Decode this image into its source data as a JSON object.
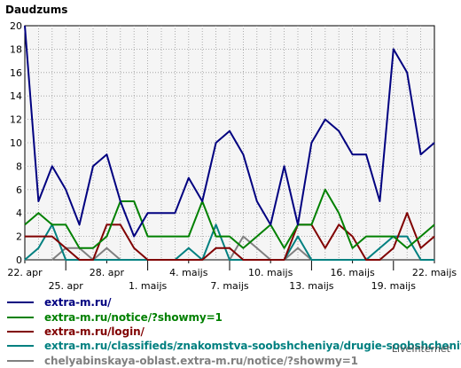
{
  "chart_data": {
    "type": "line",
    "title": "Daudzums",
    "ylim": [
      0,
      20
    ],
    "y_ticks": [
      0,
      2,
      4,
      6,
      8,
      10,
      12,
      14,
      16,
      18,
      20
    ],
    "grid": true,
    "legend_placement": "bottom",
    "x": [
      "22. apr",
      "23. apr",
      "24. apr",
      "25. apr",
      "26. apr",
      "27. apr",
      "28. apr",
      "29. apr",
      "30. apr",
      "1. maijs",
      "2. maijs",
      "3. maijs",
      "4. maijs",
      "5. maijs",
      "6. maijs",
      "7. maijs",
      "8. maijs",
      "9. maijs",
      "10. maijs",
      "11. maijs",
      "12. maijs",
      "13. maijs",
      "14. maijs",
      "15. maijs",
      "16. maijs",
      "17. maijs",
      "18. maijs",
      "19. maijs",
      "20. maijs",
      "21. maijs",
      "22. maijs"
    ],
    "x_tick_labels_top": [
      "22. apr",
      "28. apr",
      "4. maijs",
      "10. maijs",
      "16. maijs",
      "22. maijs"
    ],
    "x_tick_labels_bottom": [
      "25. apr",
      "1. maijs",
      "7. maijs",
      "13. maijs",
      "19. maijs"
    ],
    "series": [
      {
        "name": "extra-m.ru/",
        "color": "#000080",
        "values": [
          20,
          5,
          8,
          6,
          3,
          8,
          9,
          5,
          2,
          4,
          4,
          4,
          7,
          5,
          10,
          11,
          9,
          5,
          3,
          8,
          3,
          10,
          12,
          11,
          9,
          9,
          5,
          18,
          16,
          9,
          10
        ]
      },
      {
        "name": "extra-m.ru/notice/?showmy=1",
        "color": "#008000",
        "values": [
          3,
          4,
          3,
          3,
          1,
          1,
          2,
          5,
          5,
          2,
          2,
          2,
          2,
          5,
          2,
          2,
          1,
          2,
          3,
          1,
          3,
          3,
          6,
          4,
          1,
          2,
          2,
          2,
          1,
          2,
          3
        ]
      },
      {
        "name": "extra-m.ru/login/",
        "color": "#800000",
        "values": [
          2,
          2,
          2,
          1,
          0,
          0,
          3,
          3,
          1,
          0,
          0,
          0,
          0,
          0,
          1,
          1,
          0,
          0,
          0,
          0,
          3,
          3,
          1,
          3,
          2,
          0,
          0,
          1,
          4,
          1,
          2
        ]
      },
      {
        "name": "extra-m.ru/classifieds/znakomstva-soobshcheniya/drugie-soobshcheniya/",
        "color": "#008080",
        "values": [
          0,
          1,
          3,
          0,
          0,
          0,
          0,
          0,
          0,
          0,
          0,
          0,
          1,
          0,
          3,
          0,
          0,
          0,
          0,
          0,
          2,
          0,
          0,
          0,
          0,
          0,
          1,
          2,
          2,
          0,
          0
        ]
      },
      {
        "name": "chelyabinskaya-oblast.extra-m.ru/notice/?showmy=1",
        "color": "#808080",
        "values": [
          0,
          0,
          0,
          1,
          1,
          0,
          1,
          0,
          0,
          0,
          0,
          0,
          0,
          0,
          0,
          0,
          2,
          1,
          0,
          0,
          1,
          0,
          0,
          0,
          0,
          0,
          0,
          0,
          0,
          0,
          0
        ]
      }
    ]
  },
  "credit": "LiveInternet"
}
